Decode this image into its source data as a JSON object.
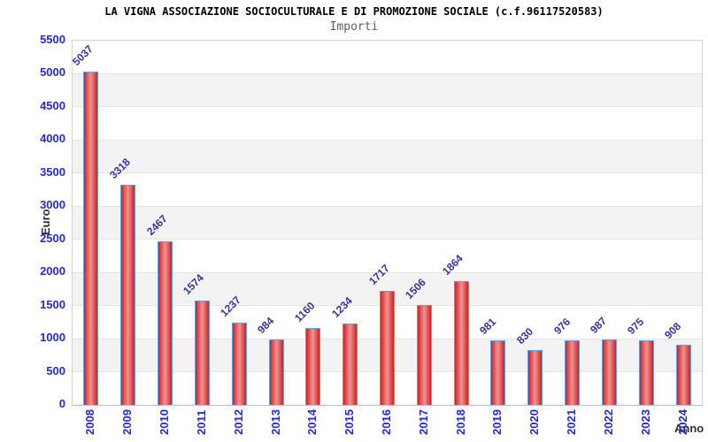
{
  "chart_data": {
    "type": "bar",
    "title": "LA VIGNA ASSOCIAZIONE SOCIOCULTURALE E DI PROMOZIONE SOCIALE (c.f.96117520583)",
    "subtitle": "Importi",
    "xlabel": "Anno",
    "ylabel": "Euro",
    "categories": [
      "2008",
      "2009",
      "2010",
      "2011",
      "2012",
      "2013",
      "2014",
      "2015",
      "2016",
      "2017",
      "2018",
      "2019",
      "2020",
      "2021",
      "2022",
      "2023",
      "2024"
    ],
    "values": [
      5037,
      3318,
      2467,
      1574,
      1237,
      984,
      1160,
      1234,
      1717,
      1506,
      1864,
      981,
      830,
      976,
      987,
      975,
      908
    ],
    "ylim": [
      0,
      5500
    ],
    "ytick_step": 500,
    "grid": true,
    "legend_position": "none",
    "colors": {
      "bar_fill_edge": "#d32020",
      "bar_fill_center": "#ef9494",
      "bar_border": "#57a3f1",
      "tick_label": "#2828d2",
      "value_label": "#34349c",
      "band_white": "#ffffff",
      "band_gray": "#f3f3f3",
      "grid_line": "#e4e4e4",
      "plot_border": "#d2d2d2",
      "title_color": "#000000",
      "subtitle_color": "#5e5e5e",
      "axis_title_color": "#2d2d2d"
    }
  }
}
